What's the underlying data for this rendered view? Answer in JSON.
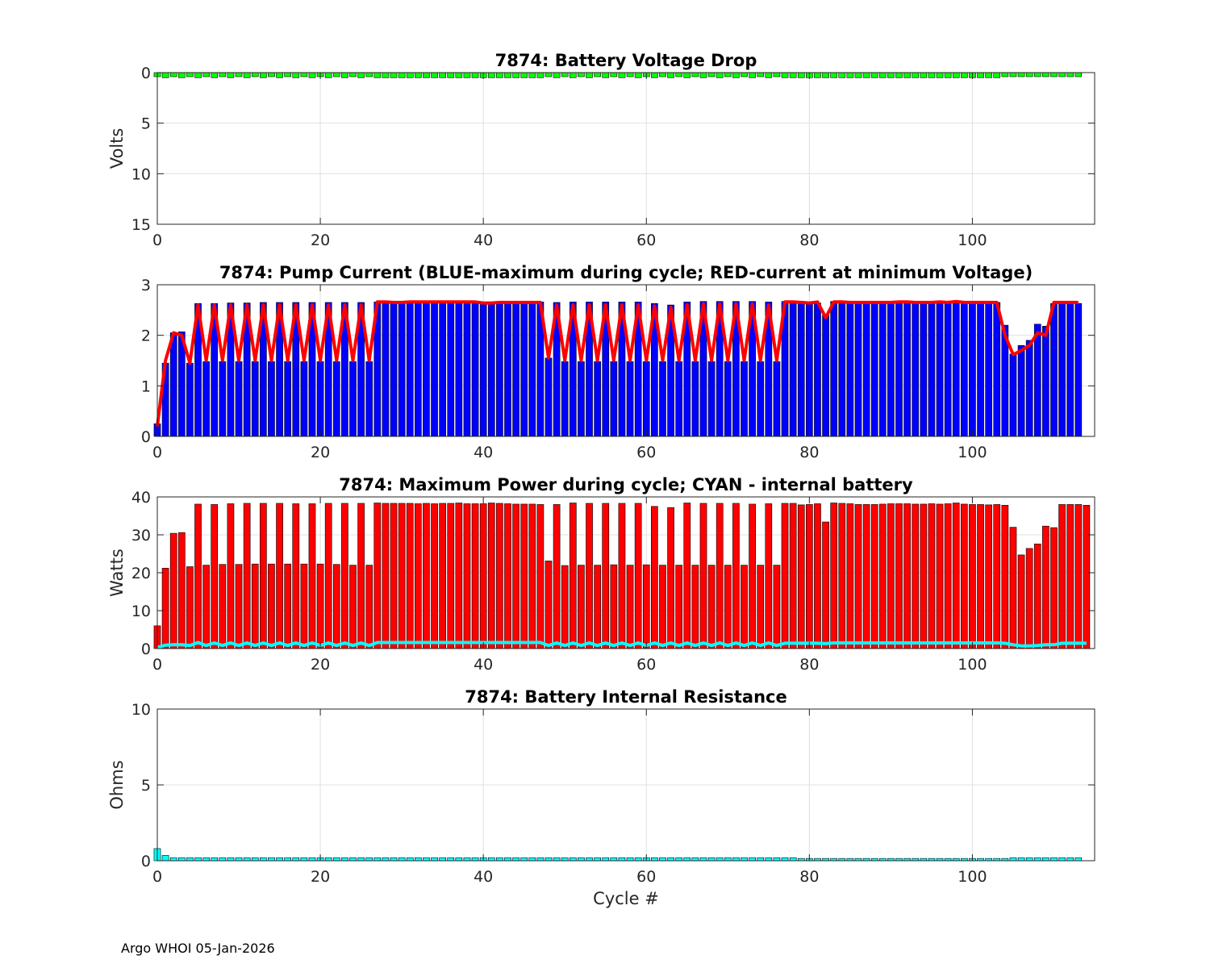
{
  "footer": "Argo WHOI 05-Jan-2026",
  "colors": {
    "green": "#00ff00",
    "blue": "#0000ff",
    "red": "#ff0000",
    "cyan": "#00ffff",
    "edge": "#000000",
    "grid": "#e0e0e0"
  },
  "chart_data": [
    {
      "id": "voltage",
      "type": "bar",
      "title": "7874: Battery Voltage Drop",
      "xlabel": "",
      "ylabel": "Volts",
      "xlim": [
        0,
        115
      ],
      "ylim": [
        0,
        15
      ],
      "y_reversed": true,
      "xticks": [
        0,
        20,
        40,
        60,
        80,
        100
      ],
      "yticks": [
        0,
        5,
        10,
        15
      ],
      "grid": true,
      "bar_color": "green",
      "pattern": {
        "first": 0.4,
        "alt_odd": 0.5,
        "alt_even": 0.4,
        "alt_range": [
          1,
          27
        ],
        "alt_range2": [
          47,
          77
        ],
        "flat": 0.5,
        "tail": 0.4,
        "tail_start": 104
      },
      "n": 114
    },
    {
      "id": "current",
      "type": "bar",
      "title": "7874: Pump Current (BLUE-maximum during cycle; RED-current at minimum Voltage)",
      "xlabel": "",
      "ylabel": "",
      "xlim": [
        0,
        115
      ],
      "ylim": [
        0,
        3
      ],
      "xticks": [
        0,
        20,
        40,
        60,
        80,
        100
      ],
      "yticks": [
        0,
        1,
        2,
        3
      ],
      "grid": true,
      "bar_color": "blue",
      "line_color": "red",
      "blue_values": [
        0.25,
        1.45,
        2.05,
        2.07,
        1.45,
        2.63,
        1.48,
        2.63,
        1.48,
        2.64,
        1.48,
        2.64,
        1.48,
        2.65,
        1.48,
        2.65,
        1.48,
        2.65,
        1.48,
        2.65,
        1.48,
        2.65,
        1.48,
        2.65,
        1.48,
        2.65,
        1.48,
        2.66,
        2.66,
        2.65,
        2.65,
        2.66,
        2.66,
        2.66,
        2.66,
        2.66,
        2.66,
        2.66,
        2.66,
        2.66,
        2.65,
        2.65,
        2.66,
        2.66,
        2.66,
        2.66,
        2.66,
        2.66,
        1.55,
        2.65,
        1.48,
        2.66,
        1.48,
        2.66,
        1.48,
        2.66,
        1.48,
        2.66,
        1.48,
        2.66,
        1.48,
        2.63,
        1.48,
        2.6,
        1.48,
        2.66,
        1.48,
        2.67,
        1.48,
        2.67,
        1.48,
        2.67,
        1.48,
        2.67,
        1.48,
        2.66,
        1.48,
        2.67,
        2.67,
        2.66,
        2.64,
        2.64,
        2.4,
        2.67,
        2.67,
        2.66,
        2.66,
        2.66,
        2.66,
        2.66,
        2.66,
        2.66,
        2.66,
        2.66,
        2.66,
        2.66,
        2.67,
        2.66,
        2.67,
        2.66,
        2.66,
        2.65,
        2.65,
        2.65,
        2.2,
        1.63,
        1.8,
        1.9,
        2.22,
        2.18,
        2.63,
        2.63,
        2.63,
        2.63
      ],
      "red_values": [
        0.2,
        1.5,
        2.05,
        2.0,
        1.45,
        2.6,
        1.5,
        2.6,
        1.5,
        2.6,
        1.5,
        2.6,
        1.5,
        2.6,
        1.5,
        2.6,
        1.5,
        2.6,
        1.5,
        2.6,
        1.5,
        2.6,
        1.5,
        2.6,
        1.5,
        2.6,
        1.5,
        2.66,
        2.66,
        2.65,
        2.65,
        2.66,
        2.66,
        2.66,
        2.66,
        2.66,
        2.66,
        2.66,
        2.66,
        2.66,
        2.64,
        2.64,
        2.65,
        2.65,
        2.65,
        2.65,
        2.65,
        2.65,
        1.55,
        2.6,
        1.5,
        2.6,
        1.5,
        2.6,
        1.5,
        2.6,
        1.5,
        2.6,
        1.5,
        2.6,
        1.5,
        2.58,
        1.5,
        2.55,
        1.5,
        2.6,
        1.5,
        2.62,
        1.5,
        2.62,
        1.5,
        2.62,
        1.5,
        2.62,
        1.5,
        2.6,
        1.5,
        2.66,
        2.66,
        2.65,
        2.64,
        2.66,
        2.35,
        2.66,
        2.66,
        2.65,
        2.65,
        2.65,
        2.65,
        2.65,
        2.65,
        2.66,
        2.66,
        2.65,
        2.65,
        2.65,
        2.66,
        2.65,
        2.67,
        2.65,
        2.65,
        2.65,
        2.65,
        2.65,
        2.0,
        1.62,
        1.7,
        1.8,
        2.05,
        2.0,
        2.65,
        2.65,
        2.65,
        2.65
      ]
    },
    {
      "id": "power",
      "type": "bar",
      "title": "7874: Maximum Power during cycle; CYAN - internal battery",
      "xlabel": "",
      "ylabel": "Watts",
      "xlim": [
        0,
        115
      ],
      "ylim": [
        0,
        40
      ],
      "xticks": [
        0,
        20,
        40,
        60,
        80,
        100
      ],
      "yticks": [
        0,
        10,
        20,
        30,
        40
      ],
      "grid": true,
      "bar_color": "red",
      "line_color": "cyan",
      "red_values": [
        6,
        21.2,
        30.4,
        30.6,
        21.6,
        38.1,
        22.0,
        38.0,
        22.2,
        38.2,
        22.2,
        38.3,
        22.3,
        38.3,
        22.3,
        38.3,
        22.3,
        38.2,
        22.3,
        38.2,
        22.3,
        38.3,
        22.2,
        38.3,
        22.0,
        38.3,
        22.0,
        38.4,
        38.3,
        38.3,
        38.3,
        38.3,
        38.2,
        38.3,
        38.2,
        38.3,
        38.3,
        38.4,
        38.2,
        38.2,
        38.2,
        38.4,
        38.3,
        38.2,
        38.1,
        38.1,
        38.1,
        38.0,
        23.1,
        38.0,
        21.9,
        38.4,
        22.0,
        38.3,
        22.0,
        38.3,
        22.1,
        38.3,
        22.0,
        38.3,
        22.1,
        37.5,
        22.0,
        37.2,
        22.0,
        38.4,
        22.0,
        38.3,
        22.0,
        38.3,
        22.0,
        38.3,
        22.0,
        38.1,
        22.0,
        38.2,
        22.0,
        38.3,
        38.3,
        37.9,
        38.0,
        38.2,
        33.4,
        38.4,
        38.3,
        38.2,
        38.0,
        38.0,
        38.0,
        38.1,
        38.2,
        38.2,
        38.2,
        38.1,
        38.1,
        38.2,
        38.1,
        38.2,
        38.4,
        38.1,
        38.0,
        38.0,
        37.9,
        38.0,
        37.8,
        32.0,
        24.7,
        26.4,
        27.6,
        32.3,
        31.9,
        38.0,
        38.0,
        38.0,
        37.8
      ],
      "cyan_values": [
        0.3,
        0.9,
        1.0,
        1.0,
        0.8,
        1.6,
        0.8,
        1.5,
        0.8,
        1.5,
        0.8,
        1.5,
        0.8,
        1.5,
        0.8,
        1.5,
        0.8,
        1.5,
        0.8,
        1.5,
        0.8,
        1.5,
        0.8,
        1.5,
        0.8,
        1.5,
        0.8,
        1.6,
        1.6,
        1.6,
        1.6,
        1.6,
        1.6,
        1.6,
        1.6,
        1.6,
        1.6,
        1.6,
        1.6,
        1.6,
        1.6,
        1.6,
        1.6,
        1.6,
        1.6,
        1.6,
        1.6,
        1.6,
        0.8,
        1.5,
        0.8,
        1.5,
        0.8,
        1.5,
        0.8,
        1.5,
        0.8,
        1.5,
        0.8,
        1.5,
        0.8,
        1.5,
        0.8,
        1.5,
        0.8,
        1.5,
        0.8,
        1.5,
        0.8,
        1.5,
        0.8,
        1.5,
        0.8,
        1.5,
        0.8,
        1.5,
        0.8,
        1.4,
        1.4,
        1.4,
        1.4,
        1.4,
        1.3,
        1.5,
        1.5,
        1.5,
        1.5,
        1.5,
        1.5,
        1.5,
        1.5,
        1.5,
        1.5,
        1.5,
        1.5,
        1.5,
        1.5,
        1.5,
        1.5,
        1.5,
        1.5,
        1.5,
        1.5,
        1.5,
        1.4,
        1.0,
        0.7,
        0.7,
        0.8,
        1.0,
        1.0,
        1.4,
        1.4,
        1.4,
        1.4
      ]
    },
    {
      "id": "resistance",
      "type": "bar",
      "title": "7874: Battery Internal Resistance",
      "xlabel": "Cycle #",
      "ylabel": "Ohms",
      "xlim": [
        0,
        115
      ],
      "ylim": [
        0,
        10
      ],
      "xticks": [
        0,
        20,
        40,
        60,
        80,
        100
      ],
      "yticks": [
        0,
        5,
        10
      ],
      "grid": true,
      "bar_color": "cyan",
      "values_note_first": 0.8,
      "first": 0.8,
      "second": 0.35,
      "flat": 0.2,
      "low_range": [
        79,
        104
      ],
      "low": 0.15,
      "n": 114
    }
  ]
}
